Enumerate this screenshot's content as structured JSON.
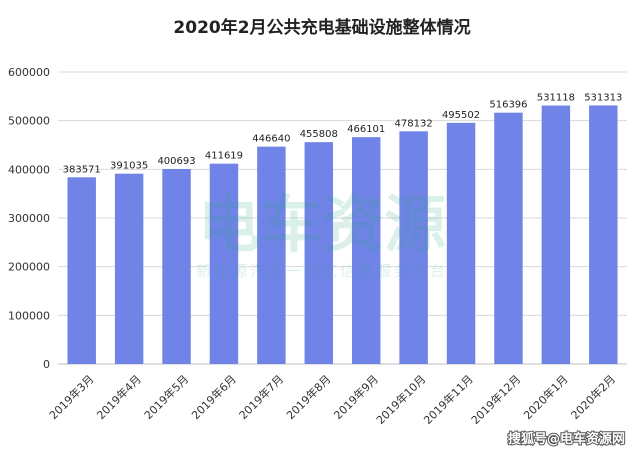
{
  "chart_data": {
    "type": "bar",
    "title": "2020年2月公共充电基础设施整体情况",
    "categories": [
      "2019年3月",
      "2019年4月",
      "2019年5月",
      "2019年6月",
      "2019年7月",
      "2019年8月",
      "2019年9月",
      "2019年10月",
      "2019年11月",
      "2019年12月",
      "2020年1月",
      "2020年2月"
    ],
    "values": [
      383571,
      391035,
      400693,
      411619,
      446640,
      455808,
      466101,
      478132,
      495502,
      516396,
      531118,
      531313
    ],
    "data_labels": [
      "383571",
      "391035",
      "400693",
      "411619",
      "446640",
      "455808",
      "466101",
      "478132",
      "495502",
      "516396",
      "531118",
      "531313"
    ],
    "ylim": [
      0,
      600000
    ],
    "yticks": [
      0,
      100000,
      200000,
      300000,
      400000,
      500000,
      600000
    ],
    "ytick_labels": [
      "0",
      "100000",
      "200000",
      "300000",
      "400000",
      "500000",
      "600000"
    ],
    "grid": true,
    "bar_color": "#7083e6",
    "xlabel": "",
    "ylabel": ""
  },
  "watermark": {
    "main": "电车资源",
    "sub": "新能源汽车一站式信息服务平台"
  },
  "source_credit": "搜狐号@电车资源网"
}
